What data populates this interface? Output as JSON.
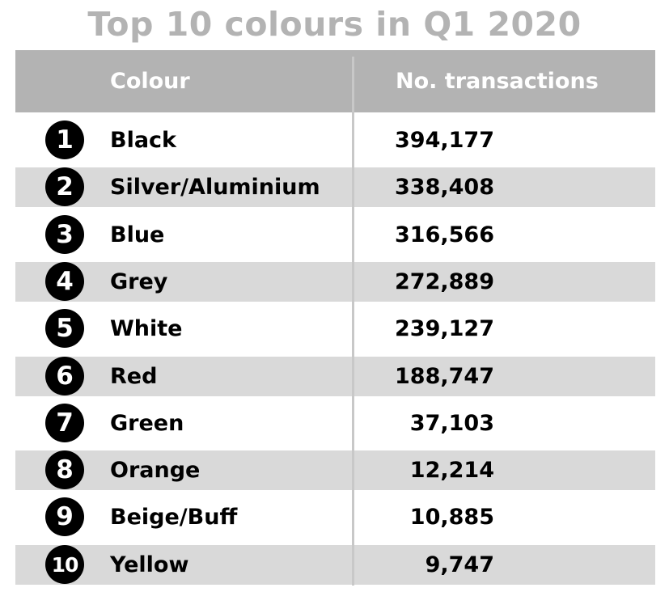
{
  "title": "Top 10 colours in Q1 2020",
  "columns": {
    "colour": "Colour",
    "transactions": "No. transactions"
  },
  "colors": {
    "header_bg": "#b3b3b3",
    "title": "#b3b3b3",
    "stripe": "#d9d9d9",
    "badge": "#000000"
  },
  "chart_data": {
    "type": "table",
    "title": "Top 10 colours in Q1 2020",
    "columns": [
      "Colour",
      "No. transactions"
    ],
    "rows": [
      {
        "rank": "1",
        "colour": "Black",
        "transactions": "394,177"
      },
      {
        "rank": "2",
        "colour": "Silver/Aluminium",
        "transactions": "338,408"
      },
      {
        "rank": "3",
        "colour": "Blue",
        "transactions": "316,566"
      },
      {
        "rank": "4",
        "colour": "Grey",
        "transactions": "272,889"
      },
      {
        "rank": "5",
        "colour": "White",
        "transactions": "239,127"
      },
      {
        "rank": "6",
        "colour": "Red",
        "transactions": "188,747"
      },
      {
        "rank": "7",
        "colour": "Green",
        "transactions": "37,103"
      },
      {
        "rank": "8",
        "colour": "Orange",
        "transactions": "12,214"
      },
      {
        "rank": "9",
        "colour": "Beige/Buff",
        "transactions": "10,885"
      },
      {
        "rank": "10",
        "colour": "Yellow",
        "transactions": "9,747"
      }
    ]
  }
}
